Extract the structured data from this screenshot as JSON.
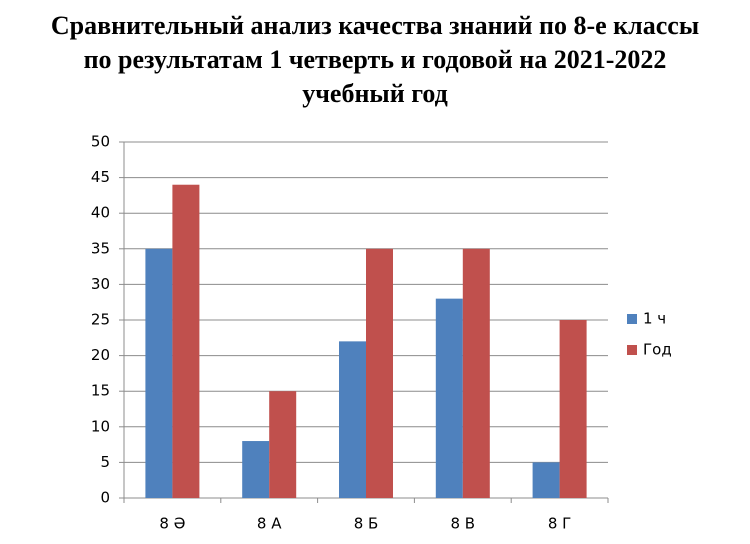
{
  "chart_data": {
    "type": "bar",
    "title": [
      "Сравнительный анализ качества знаний по 8-е классы",
      "по результатам 1 четверть и годовой на  2021-2022",
      "учебный год"
    ],
    "categories": [
      "8 Ә",
      "8 А",
      "8 Б",
      "8 В",
      "8 Г"
    ],
    "series": [
      {
        "name": "1 ч",
        "color": "#4f81bd",
        "values": [
          35,
          8,
          22,
          28,
          5
        ]
      },
      {
        "name": "Год",
        "color": "#c0504d",
        "values": [
          44,
          15,
          35,
          35,
          25
        ]
      }
    ],
    "ylim": [
      0,
      50
    ],
    "yticks": [
      0,
      5,
      10,
      15,
      20,
      25,
      30,
      35,
      40,
      45,
      50
    ],
    "grid": true,
    "legend": "right"
  }
}
